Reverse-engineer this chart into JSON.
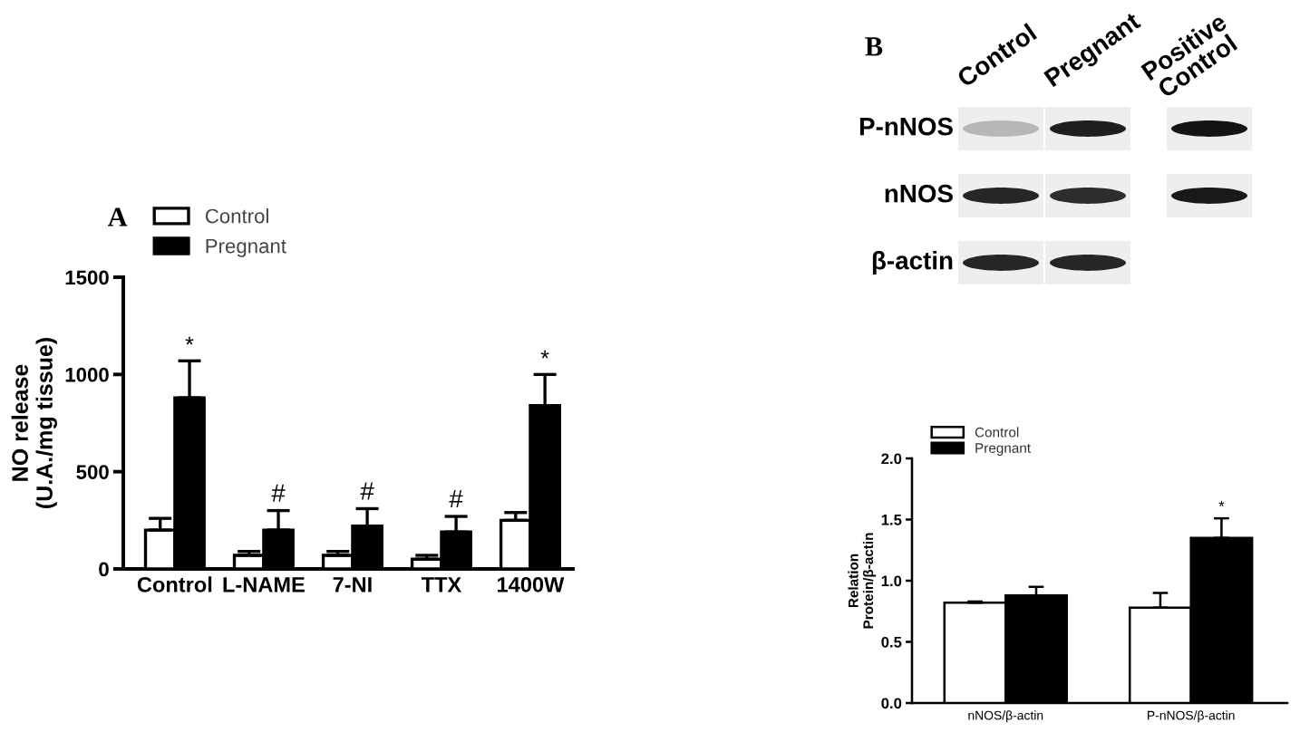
{
  "chart_data": [
    {
      "type": "bar",
      "title": "A",
      "ylabel": "NO release\n(U.A./mg tissue)",
      "categories": [
        "Control",
        "L-NAME",
        "7-NI",
        "TTX",
        "1400W"
      ],
      "series": [
        {
          "name": "Control",
          "color": "#ffffff",
          "values": [
            200,
            70,
            70,
            50,
            250
          ],
          "errors": [
            [
              200,
              260
            ],
            [
              70,
              90
            ],
            [
              70,
              90
            ],
            [
              50,
              70
            ],
            [
              250,
              290
            ]
          ]
        },
        {
          "name": "Pregnant",
          "color": "#000000",
          "values": [
            880,
            200,
            220,
            190,
            840
          ],
          "errors": [
            [
              880,
              1070
            ],
            [
              200,
              300
            ],
            [
              220,
              310
            ],
            [
              190,
              270
            ],
            [
              840,
              1000
            ]
          ]
        }
      ],
      "ylim": [
        0,
        1500
      ],
      "yticks": [
        0,
        500,
        1000,
        1500
      ],
      "legend": "top left",
      "annotations": [
        {
          "text": "*",
          "x": "Control",
          "y": 880
        },
        {
          "text": "#",
          "x": "L-NAME",
          "y": 200
        },
        {
          "text": "#",
          "x": "7-NI",
          "y": 220
        },
        {
          "text": "#",
          "x": "TTX",
          "y": 190
        },
        {
          "text": "*",
          "x": "1400W",
          "y": 840
        }
      ]
    },
    {
      "type": "other",
      "title": "B",
      "categories": [
        "Control",
        "Pregnant",
        "Positive\nControl"
      ],
      "y_categories": [
        "P-nNOS",
        "nNOS",
        "β-actin"
      ]
    },
    {
      "type": "bar",
      "ylabel": "Relation\nProtein/β-actin",
      "categories": [
        "nNOS/β-actin",
        "P-nNOS/β-actin"
      ],
      "series": [
        {
          "name": "Control",
          "color": "#ffffff",
          "values": [
            0.82,
            0.78
          ],
          "errors": [
            [
              0.82,
              0.83
            ],
            [
              0.78,
              0.9
            ]
          ]
        },
        {
          "name": "Pregnant",
          "color": "#000000",
          "values": [
            0.88,
            1.35
          ],
          "errors": [
            [
              0.88,
              0.95
            ],
            [
              1.35,
              1.51
            ]
          ]
        }
      ],
      "ylim": [
        0,
        2.0
      ],
      "yticks": [
        {
          "value": 0,
          "label": "0.0"
        },
        {
          "value": 0.5,
          "label": "0.5"
        },
        {
          "value": 1.0,
          "label": "1.0"
        },
        {
          "value": 1.5,
          "label": "1.5"
        },
        {
          "value": 2.0,
          "label": "2.0"
        }
      ],
      "legend": "top left",
      "annotations": [
        {
          "text": "*",
          "x": "P-nNOS/β-actin",
          "y": 1.35
        }
      ]
    }
  ]
}
